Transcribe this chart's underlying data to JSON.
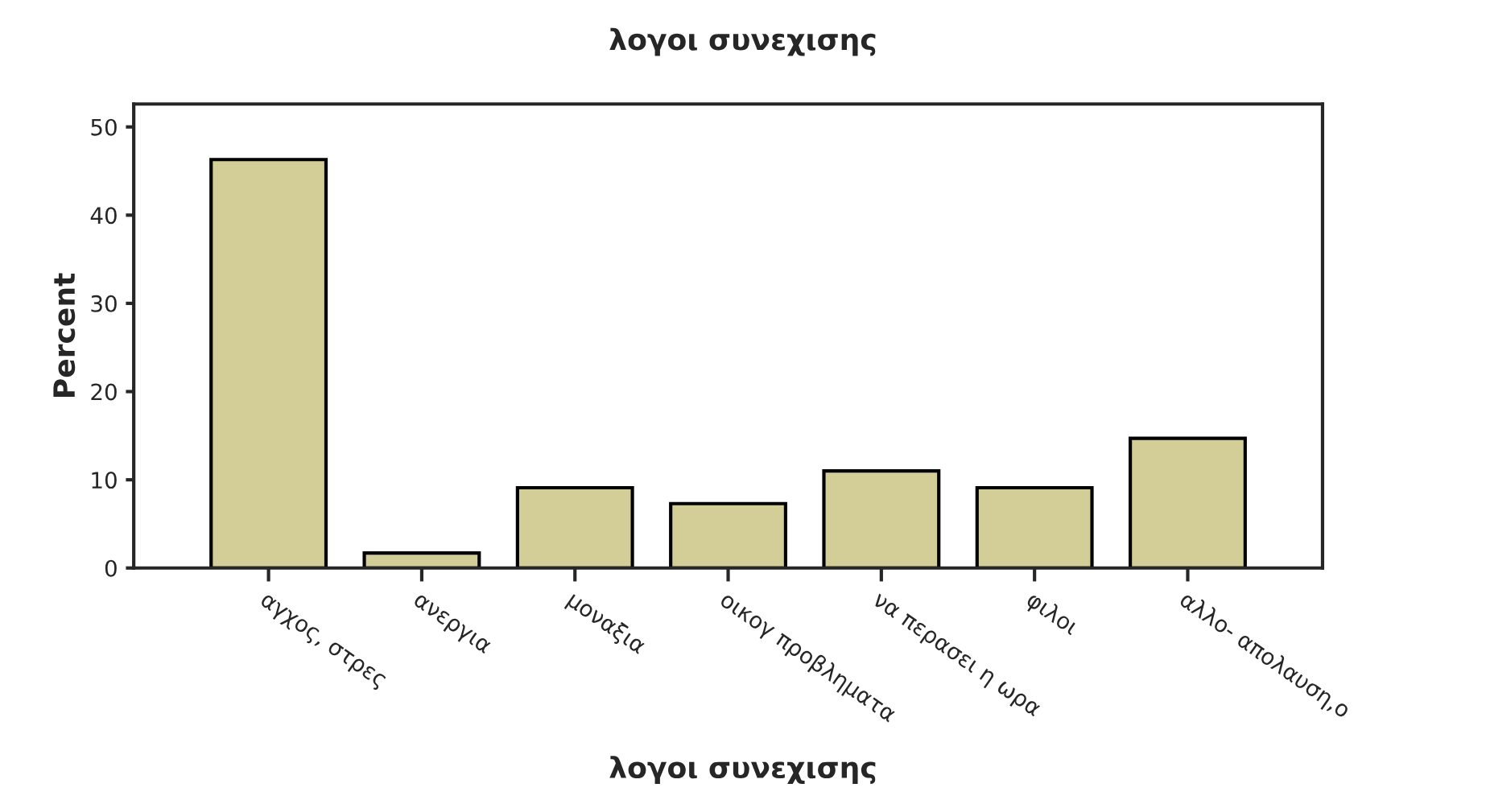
{
  "chart_data": {
    "type": "bar",
    "title": "λογοι συνεχισης",
    "xlabel": "λογοι συνεχισης",
    "ylabel": "Percent",
    "categories": [
      "αγχος, στρες",
      "ανεργια",
      "μοναξια",
      "οικογ προβληματα",
      "να περασει η ωρα",
      "φιλοι",
      "αλλο- απολαυση,ο"
    ],
    "values": [
      46.3,
      1.7,
      9.1,
      7.3,
      11.0,
      9.1,
      14.7
    ],
    "color": "#d3cd98",
    "ylim": [
      0,
      52.6
    ],
    "yticks": [
      0,
      10,
      20,
      30,
      40,
      50
    ],
    "grid": false,
    "legend": false
  }
}
